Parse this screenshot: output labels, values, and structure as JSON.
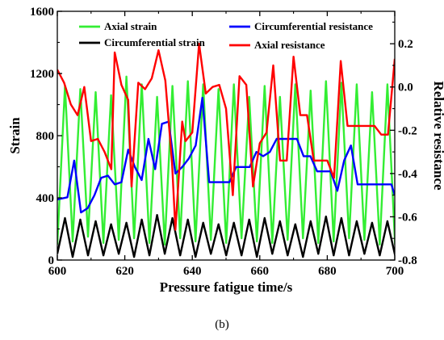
{
  "chart_data": {
    "type": "line",
    "title": "",
    "xlabel": "Pressure fatigue time/s",
    "ylabel_left": "Strain",
    "ylabel_right": "Relative resistance",
    "xlim": [
      600,
      700
    ],
    "ylim_left": [
      0,
      1600
    ],
    "ylim_right": [
      -0.8,
      0.35
    ],
    "x_ticks": [
      "600",
      "620",
      "640",
      "660",
      "680",
      "700"
    ],
    "y_left_ticks": [
      "0",
      "400",
      "800",
      "1200",
      "1600"
    ],
    "y_right_ticks": [
      "-0.8",
      "-0.6",
      "-0.4",
      "-0.2",
      "0.0",
      "0.2"
    ],
    "legend": {
      "placement": "top",
      "entries": [
        "Axial strain",
        "Circumferential strain",
        "Circumferential resistance",
        "Axial resistance"
      ]
    },
    "series": [
      {
        "name": "Axial strain",
        "axis": "left",
        "color": "#33ee33",
        "wave": {
          "start": 600,
          "period": 4.55,
          "peaks": [
            1120,
            1100,
            1080,
            1060,
            1180,
            1130,
            1050,
            1120,
            1150,
            1130,
            1100,
            1130,
            1050,
            1120,
            1050,
            1130,
            1090,
            1150,
            1140,
            1130,
            1080,
            1130
          ],
          "troughs": [
            100,
            120,
            150,
            110,
            130,
            140,
            110,
            100,
            140,
            120,
            130,
            110,
            140,
            120,
            110,
            130,
            140,
            110,
            120,
            140,
            130,
            100
          ]
        }
      },
      {
        "name": "Circumferential strain",
        "axis": "left",
        "color": "#000000",
        "wave": {
          "start": 600,
          "period": 4.55,
          "peaks": [
            270,
            260,
            250,
            230,
            240,
            260,
            290,
            270,
            260,
            240,
            230,
            240,
            260,
            270,
            250,
            230,
            250,
            280,
            270,
            250,
            240,
            250
          ],
          "troughs": [
            40,
            20,
            30,
            30,
            40,
            20,
            30,
            40,
            30,
            20,
            40,
            30,
            30,
            20,
            40,
            30,
            20,
            40,
            30,
            30,
            40,
            30
          ]
        }
      },
      {
        "name": "Circumferential resistance",
        "axis": "right",
        "color": "#0000ff",
        "x": [
          600,
          603,
          605,
          607,
          609,
          611,
          613,
          615,
          617,
          619,
          621,
          623,
          625,
          627,
          629,
          631,
          633,
          635,
          637,
          639,
          641,
          643,
          645,
          647,
          649,
          651,
          653,
          655,
          657,
          659,
          661,
          663,
          665,
          667,
          669,
          671,
          673,
          675,
          677,
          679,
          681,
          683,
          685,
          687,
          689,
          691,
          693,
          695,
          697,
          699,
          700
        ],
        "y": [
          -0.52,
          -0.51,
          -0.34,
          -0.58,
          -0.56,
          -0.5,
          -0.42,
          -0.41,
          -0.45,
          -0.44,
          -0.29,
          -0.37,
          -0.43,
          -0.24,
          -0.38,
          -0.17,
          -0.16,
          -0.4,
          -0.37,
          -0.33,
          -0.27,
          -0.05,
          -0.44,
          -0.44,
          -0.44,
          -0.44,
          -0.37,
          -0.37,
          -0.37,
          -0.3,
          -0.32,
          -0.3,
          -0.24,
          -0.24,
          -0.24,
          -0.24,
          -0.32,
          -0.32,
          -0.39,
          -0.39,
          -0.39,
          -0.48,
          -0.34,
          -0.27,
          -0.45,
          -0.45,
          -0.45,
          -0.45,
          -0.45,
          -0.45,
          -0.5
        ]
      },
      {
        "name": "Axial resistance",
        "axis": "right",
        "color": "#ff0000",
        "x": [
          600,
          602,
          604,
          606,
          608,
          610,
          612,
          614,
          616,
          617,
          619,
          621,
          622,
          624,
          626,
          628,
          630,
          632,
          634,
          635,
          637,
          638,
          640,
          642,
          644,
          646,
          648,
          650,
          652,
          654,
          656,
          658,
          660,
          662,
          664,
          666,
          668,
          670,
          672,
          674,
          676,
          678,
          680,
          682,
          684,
          686,
          688,
          690,
          692,
          694,
          696,
          698,
          700
        ],
        "y": [
          0.08,
          0.02,
          -0.08,
          -0.13,
          0.0,
          -0.25,
          -0.24,
          -0.3,
          -0.38,
          0.16,
          0.01,
          -0.06,
          -0.46,
          0.02,
          -0.01,
          0.04,
          0.17,
          0.03,
          -0.35,
          -0.66,
          -0.16,
          -0.25,
          -0.21,
          0.2,
          -0.03,
          0.0,
          0.01,
          -0.1,
          -0.5,
          0.05,
          0.01,
          -0.46,
          -0.26,
          -0.21,
          0.1,
          -0.34,
          -0.34,
          0.14,
          -0.13,
          -0.13,
          -0.34,
          -0.34,
          -0.34,
          -0.42,
          0.12,
          -0.18,
          -0.18,
          -0.18,
          -0.18,
          -0.18,
          -0.22,
          -0.22,
          0.13
        ]
      }
    ]
  },
  "caption": "(b)"
}
